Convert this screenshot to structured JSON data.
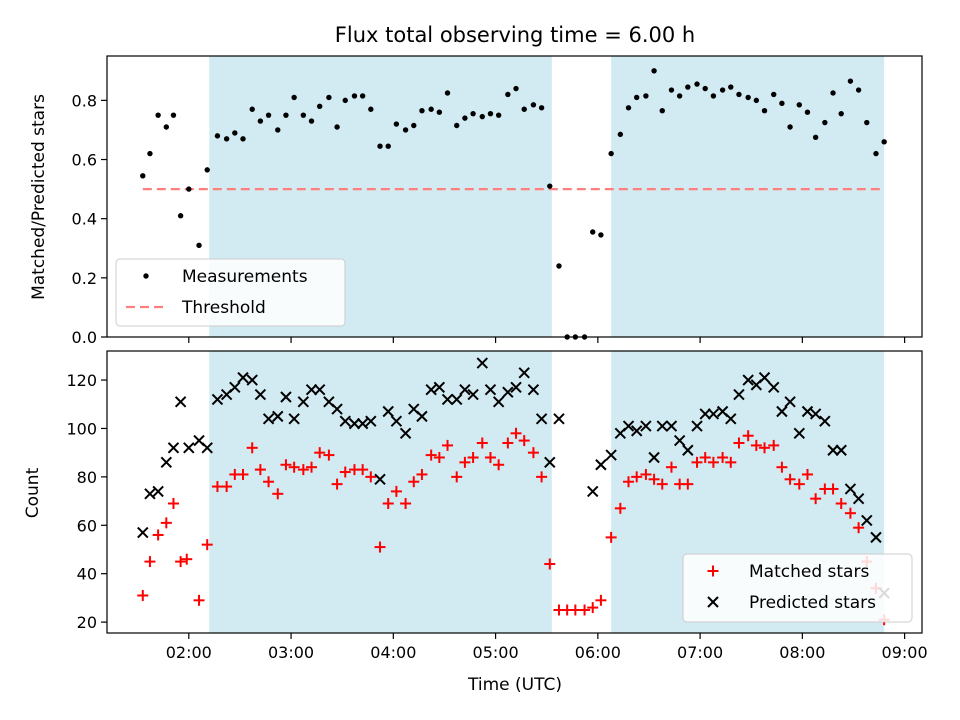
{
  "title": "Flux total observing time = 6.00 h",
  "colors": {
    "band": "#add8e6",
    "measurement": "#000000",
    "threshold": "#ff7f7f",
    "matched": "#ff0000",
    "predicted": "#000000"
  },
  "chart_data": [
    {
      "type": "scatter",
      "ylabel": "Matched/Predicted stars",
      "ylim": [
        0,
        0.95
      ],
      "xlim": [
        1.2,
        9.17
      ],
      "yticks": [
        "0.0",
        "0.2",
        "0.4",
        "0.6",
        "0.8"
      ],
      "legend_position": "lower-left",
      "legend": [
        "Measurements",
        "Threshold"
      ],
      "shaded_intervals": [
        [
          2.2,
          5.55
        ],
        [
          6.13,
          8.8
        ]
      ],
      "threshold": {
        "name": "Threshold",
        "value": 0.5,
        "x_range": [
          1.55,
          8.8
        ]
      },
      "series": [
        {
          "name": "Measurements",
          "marker": "dot",
          "points": [
            [
              1.55,
              0.545
            ],
            [
              1.62,
              0.62
            ],
            [
              1.7,
              0.75
            ],
            [
              1.78,
              0.71
            ],
            [
              1.85,
              0.75
            ],
            [
              1.92,
              0.41
            ],
            [
              2.0,
              0.5
            ],
            [
              2.1,
              0.31
            ],
            [
              2.18,
              0.565
            ],
            [
              2.28,
              0.68
            ],
            [
              2.37,
              0.67
            ],
            [
              2.45,
              0.69
            ],
            [
              2.53,
              0.67
            ],
            [
              2.62,
              0.77
            ],
            [
              2.7,
              0.73
            ],
            [
              2.78,
              0.75
            ],
            [
              2.87,
              0.7
            ],
            [
              2.95,
              0.75
            ],
            [
              3.03,
              0.81
            ],
            [
              3.12,
              0.75
            ],
            [
              3.2,
              0.73
            ],
            [
              3.28,
              0.78
            ],
            [
              3.37,
              0.81
            ],
            [
              3.45,
              0.71
            ],
            [
              3.53,
              0.8
            ],
            [
              3.62,
              0.815
            ],
            [
              3.7,
              0.815
            ],
            [
              3.78,
              0.77
            ],
            [
              3.87,
              0.645
            ],
            [
              3.95,
              0.645
            ],
            [
              4.03,
              0.72
            ],
            [
              4.12,
              0.7
            ],
            [
              4.2,
              0.715
            ],
            [
              4.28,
              0.765
            ],
            [
              4.37,
              0.77
            ],
            [
              4.45,
              0.76
            ],
            [
              4.53,
              0.825
            ],
            [
              4.62,
              0.715
            ],
            [
              4.7,
              0.74
            ],
            [
              4.78,
              0.755
            ],
            [
              4.87,
              0.745
            ],
            [
              4.95,
              0.755
            ],
            [
              5.03,
              0.75
            ],
            [
              5.12,
              0.82
            ],
            [
              5.2,
              0.84
            ],
            [
              5.28,
              0.77
            ],
            [
              5.37,
              0.785
            ],
            [
              5.45,
              0.775
            ],
            [
              5.53,
              0.51
            ],
            [
              5.62,
              0.24
            ],
            [
              5.7,
              0.0
            ],
            [
              5.78,
              0.0
            ],
            [
              5.87,
              0.0
            ],
            [
              5.95,
              0.355
            ],
            [
              6.03,
              0.345
            ],
            [
              6.13,
              0.62
            ],
            [
              6.22,
              0.685
            ],
            [
              6.3,
              0.775
            ],
            [
              6.38,
              0.81
            ],
            [
              6.47,
              0.815
            ],
            [
              6.55,
              0.9
            ],
            [
              6.63,
              0.765
            ],
            [
              6.72,
              0.835
            ],
            [
              6.8,
              0.815
            ],
            [
              6.88,
              0.845
            ],
            [
              6.97,
              0.855
            ],
            [
              7.05,
              0.84
            ],
            [
              7.13,
              0.815
            ],
            [
              7.22,
              0.835
            ],
            [
              7.3,
              0.845
            ],
            [
              7.38,
              0.82
            ],
            [
              7.47,
              0.81
            ],
            [
              7.55,
              0.8
            ],
            [
              7.63,
              0.765
            ],
            [
              7.72,
              0.82
            ],
            [
              7.8,
              0.79
            ],
            [
              7.88,
              0.71
            ],
            [
              7.97,
              0.785
            ],
            [
              8.05,
              0.76
            ],
            [
              8.13,
              0.675
            ],
            [
              8.22,
              0.725
            ],
            [
              8.3,
              0.825
            ],
            [
              8.38,
              0.755
            ],
            [
              8.47,
              0.865
            ],
            [
              8.55,
              0.835
            ],
            [
              8.63,
              0.725
            ],
            [
              8.72,
              0.62
            ],
            [
              8.8,
              0.66
            ]
          ]
        }
      ]
    },
    {
      "type": "scatter",
      "xlabel": "Time (UTC)",
      "ylabel": "Count",
      "xlim": [
        1.2,
        9.17
      ],
      "ylim": [
        15.5,
        132
      ],
      "xticks": [
        {
          "value": 2,
          "label": "02:00"
        },
        {
          "value": 3,
          "label": "03:00"
        },
        {
          "value": 4,
          "label": "04:00"
        },
        {
          "value": 5,
          "label": "05:00"
        },
        {
          "value": 6,
          "label": "06:00"
        },
        {
          "value": 7,
          "label": "07:00"
        },
        {
          "value": 8,
          "label": "08:00"
        },
        {
          "value": 9,
          "label": "09:00"
        }
      ],
      "yticks": [
        "20",
        "40",
        "60",
        "80",
        "100",
        "120"
      ],
      "legend_position": "lower-right",
      "legend": [
        "Matched stars",
        "Predicted stars"
      ],
      "shaded_intervals": [
        [
          2.2,
          5.55
        ],
        [
          6.13,
          8.8
        ]
      ],
      "series": [
        {
          "name": "Matched stars",
          "marker": "plus",
          "points": [
            [
              1.55,
              31
            ],
            [
              1.62,
              45
            ],
            [
              1.7,
              56
            ],
            [
              1.78,
              61
            ],
            [
              1.85,
              69
            ],
            [
              1.92,
              45
            ],
            [
              1.98,
              46
            ],
            [
              2.1,
              29
            ],
            [
              2.18,
              52
            ],
            [
              2.28,
              76
            ],
            [
              2.37,
              76
            ],
            [
              2.45,
              81
            ],
            [
              2.53,
              81
            ],
            [
              2.62,
              92
            ],
            [
              2.7,
              83
            ],
            [
              2.78,
              78
            ],
            [
              2.87,
              73
            ],
            [
              2.95,
              85
            ],
            [
              3.03,
              84
            ],
            [
              3.12,
              83
            ],
            [
              3.2,
              84
            ],
            [
              3.28,
              90
            ],
            [
              3.37,
              89
            ],
            [
              3.45,
              77
            ],
            [
              3.53,
              82
            ],
            [
              3.62,
              83
            ],
            [
              3.7,
              83
            ],
            [
              3.78,
              80
            ],
            [
              3.87,
              51
            ],
            [
              3.95,
              69
            ],
            [
              4.03,
              74
            ],
            [
              4.12,
              69
            ],
            [
              4.2,
              78
            ],
            [
              4.28,
              81
            ],
            [
              4.37,
              89
            ],
            [
              4.45,
              88
            ],
            [
              4.53,
              93
            ],
            [
              4.62,
              80
            ],
            [
              4.7,
              86
            ],
            [
              4.78,
              88
            ],
            [
              4.87,
              94
            ],
            [
              4.95,
              88
            ],
            [
              5.03,
              85
            ],
            [
              5.12,
              94
            ],
            [
              5.2,
              98
            ],
            [
              5.28,
              95
            ],
            [
              5.37,
              90
            ],
            [
              5.45,
              80
            ],
            [
              5.53,
              44
            ],
            [
              5.62,
              25
            ],
            [
              5.7,
              25
            ],
            [
              5.78,
              25
            ],
            [
              5.87,
              25
            ],
            [
              5.95,
              26
            ],
            [
              6.03,
              29
            ],
            [
              6.13,
              55
            ],
            [
              6.22,
              67
            ],
            [
              6.3,
              78
            ],
            [
              6.38,
              80
            ],
            [
              6.47,
              81
            ],
            [
              6.55,
              79
            ],
            [
              6.63,
              77
            ],
            [
              6.72,
              84
            ],
            [
              6.8,
              77
            ],
            [
              6.88,
              77
            ],
            [
              6.97,
              86
            ],
            [
              7.05,
              88
            ],
            [
              7.13,
              86
            ],
            [
              7.22,
              88
            ],
            [
              7.3,
              86
            ],
            [
              7.38,
              94
            ],
            [
              7.47,
              97
            ],
            [
              7.55,
              93
            ],
            [
              7.63,
              92
            ],
            [
              7.72,
              93
            ],
            [
              7.8,
              84
            ],
            [
              7.88,
              79
            ],
            [
              7.97,
              77
            ],
            [
              8.05,
              81
            ],
            [
              8.13,
              71
            ],
            [
              8.22,
              75
            ],
            [
              8.3,
              75
            ],
            [
              8.38,
              69
            ],
            [
              8.47,
              65
            ],
            [
              8.55,
              59
            ],
            [
              8.63,
              45
            ],
            [
              8.72,
              34
            ],
            [
              8.8,
              21
            ]
          ]
        },
        {
          "name": "Predicted stars",
          "marker": "x",
          "points": [
            [
              1.55,
              57
            ],
            [
              1.62,
              73
            ],
            [
              1.7,
              74
            ],
            [
              1.78,
              86
            ],
            [
              1.85,
              92
            ],
            [
              1.92,
              111
            ],
            [
              2.0,
              92
            ],
            [
              2.1,
              95
            ],
            [
              2.18,
              92
            ],
            [
              2.28,
              112
            ],
            [
              2.37,
              114
            ],
            [
              2.45,
              117
            ],
            [
              2.53,
              121
            ],
            [
              2.62,
              120
            ],
            [
              2.7,
              114
            ],
            [
              2.78,
              104
            ],
            [
              2.87,
              105
            ],
            [
              2.95,
              113
            ],
            [
              3.03,
              104
            ],
            [
              3.12,
              111
            ],
            [
              3.2,
              116
            ],
            [
              3.28,
              116
            ],
            [
              3.37,
              111
            ],
            [
              3.45,
              108
            ],
            [
              3.53,
              103
            ],
            [
              3.62,
              102
            ],
            [
              3.7,
              102
            ],
            [
              3.78,
              103
            ],
            [
              3.87,
              79
            ],
            [
              3.95,
              107
            ],
            [
              4.03,
              103
            ],
            [
              4.12,
              98
            ],
            [
              4.2,
              108
            ],
            [
              4.28,
              105
            ],
            [
              4.37,
              116
            ],
            [
              4.45,
              117
            ],
            [
              4.53,
              112
            ],
            [
              4.62,
              112
            ],
            [
              4.7,
              116
            ],
            [
              4.78,
              114
            ],
            [
              4.87,
              127
            ],
            [
              4.95,
              116
            ],
            [
              5.03,
              111
            ],
            [
              5.12,
              115
            ],
            [
              5.2,
              117
            ],
            [
              5.28,
              123
            ],
            [
              5.37,
              116
            ],
            [
              5.45,
              104
            ],
            [
              5.53,
              86
            ],
            [
              5.62,
              104
            ],
            [
              5.95,
              74
            ],
            [
              6.03,
              85
            ],
            [
              6.13,
              89
            ],
            [
              6.22,
              98
            ],
            [
              6.3,
              101
            ],
            [
              6.38,
              99
            ],
            [
              6.47,
              101
            ],
            [
              6.55,
              88
            ],
            [
              6.63,
              101
            ],
            [
              6.72,
              101
            ],
            [
              6.8,
              95
            ],
            [
              6.88,
              91
            ],
            [
              6.97,
              101
            ],
            [
              7.05,
              106
            ],
            [
              7.13,
              106
            ],
            [
              7.22,
              107
            ],
            [
              7.3,
              104
            ],
            [
              7.38,
              114
            ],
            [
              7.47,
              120
            ],
            [
              7.55,
              118
            ],
            [
              7.63,
              121
            ],
            [
              7.72,
              117
            ],
            [
              7.8,
              107
            ],
            [
              7.88,
              111
            ],
            [
              7.97,
              98
            ],
            [
              8.05,
              107
            ],
            [
              8.13,
              106
            ],
            [
              8.22,
              103
            ],
            [
              8.3,
              91
            ],
            [
              8.38,
              91
            ],
            [
              8.47,
              75
            ],
            [
              8.55,
              71
            ],
            [
              8.63,
              62
            ],
            [
              8.72,
              55
            ],
            [
              8.8,
              32
            ]
          ]
        }
      ]
    }
  ]
}
